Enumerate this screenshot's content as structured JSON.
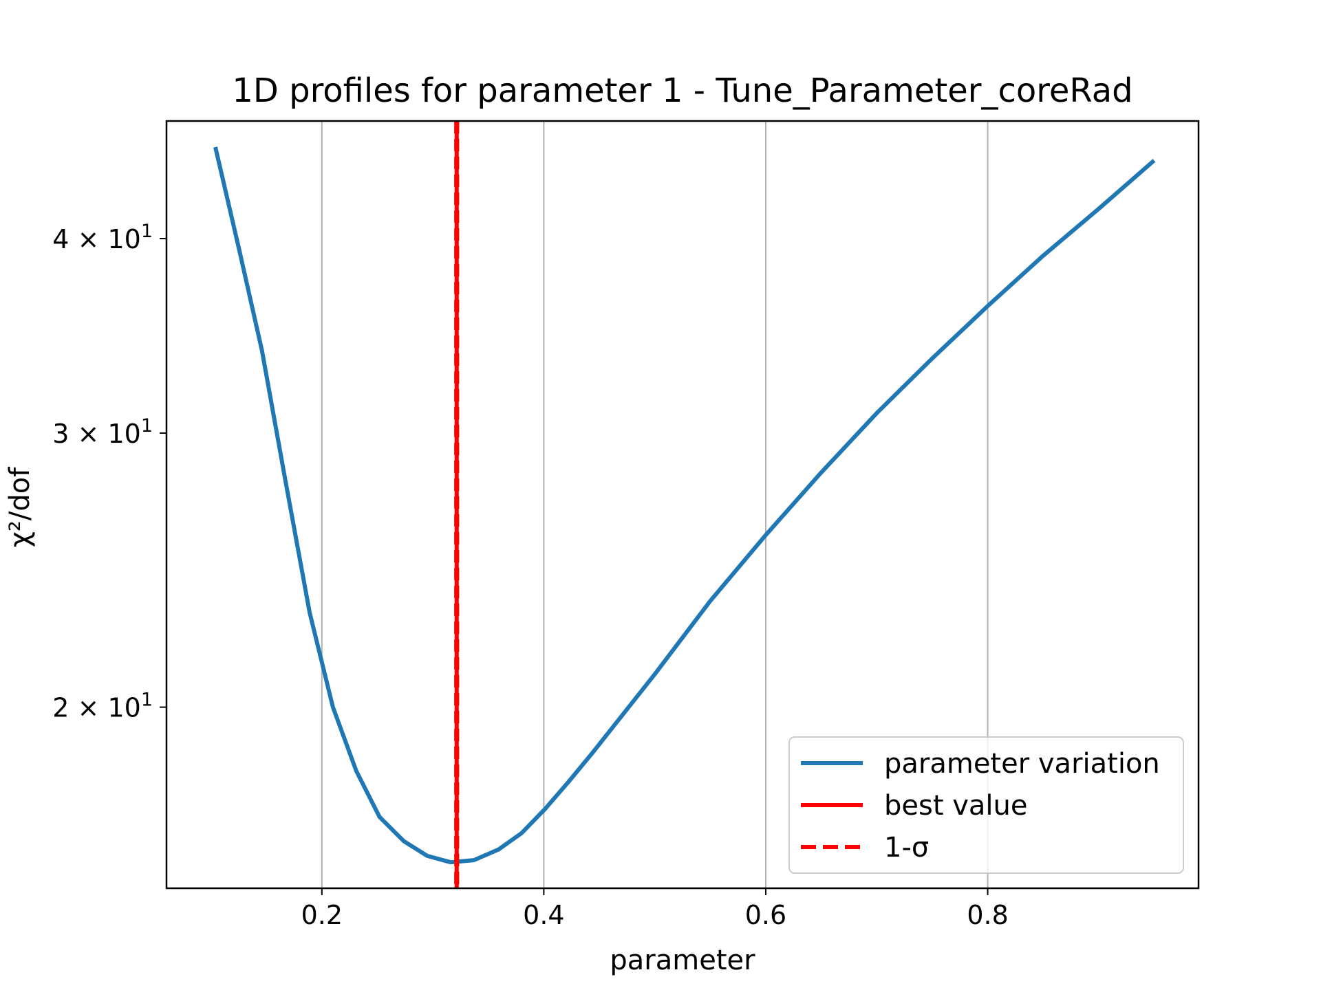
{
  "chart_data": {
    "type": "line",
    "title": "1D profiles for parameter 1 - Tune_Parameter_coreRad",
    "xlabel": "parameter",
    "ylabel": "χ²/dof",
    "yscale": "log",
    "xlim": [
      0.06,
      0.99
    ],
    "ylim": [
      15.3,
      47.6
    ],
    "grid": "x",
    "x_ticks": [
      0.2,
      0.4,
      0.6,
      0.8
    ],
    "x_tick_labels": [
      "0.2",
      "0.4",
      "0.6",
      "0.8"
    ],
    "y_ticks": [
      20,
      30,
      40
    ],
    "y_tick_labels": [
      {
        "mantissa": "2",
        "base": "10",
        "exp": "1"
      },
      {
        "mantissa": "3",
        "base": "10",
        "exp": "1"
      },
      {
        "mantissa": "4",
        "base": "10",
        "exp": "1"
      }
    ],
    "legend_position": "lower-right",
    "series": [
      {
        "name": "parameter variation",
        "color": "#1f77b4",
        "style": "solid",
        "x": [
          0.104,
          0.125,
          0.146,
          0.167,
          0.189,
          0.21,
          0.231,
          0.252,
          0.274,
          0.295,
          0.316,
          0.337,
          0.359,
          0.38,
          0.401,
          0.422,
          0.444,
          0.5,
          0.55,
          0.6,
          0.65,
          0.7,
          0.75,
          0.8,
          0.85,
          0.9,
          0.95
        ],
        "y": [
          45.8,
          39.5,
          33.9,
          28.0,
          23.0,
          20.0,
          18.2,
          17.0,
          16.4,
          16.05,
          15.9,
          15.95,
          16.2,
          16.6,
          17.2,
          17.9,
          18.7,
          21.0,
          23.4,
          25.8,
          28.3,
          30.9,
          33.5,
          36.2,
          39.0,
          41.8,
          44.9
        ]
      },
      {
        "name": "best value",
        "color": "#ff0000",
        "style": "solid",
        "x_value": 0.3215
      },
      {
        "name": "1-σ",
        "color": "#ff0000",
        "style": "dashed",
        "x_values": [
          0.3205,
          0.3225
        ]
      }
    ]
  }
}
